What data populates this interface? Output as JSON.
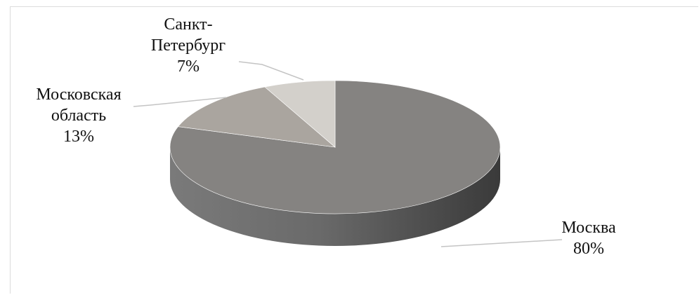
{
  "chart_data": {
    "type": "pie",
    "style": "3d",
    "slices": [
      {
        "name_lines": [
          "Москва"
        ],
        "value": 80,
        "value_label": "80%",
        "color": "#858381"
      },
      {
        "name_lines": [
          "Московская",
          "область"
        ],
        "value": 13,
        "value_label": "13%",
        "color": "#aaa59f"
      },
      {
        "name_lines": [
          "Санкт-",
          "Петербург"
        ],
        "value": 7,
        "value_label": "7%",
        "color": "#d3d0cb"
      }
    ],
    "colors": {
      "side_dark": "#3a3a3a",
      "side_light": "#7a7a7a",
      "leader_line": "#c4c4c4",
      "text": "#111111"
    }
  }
}
